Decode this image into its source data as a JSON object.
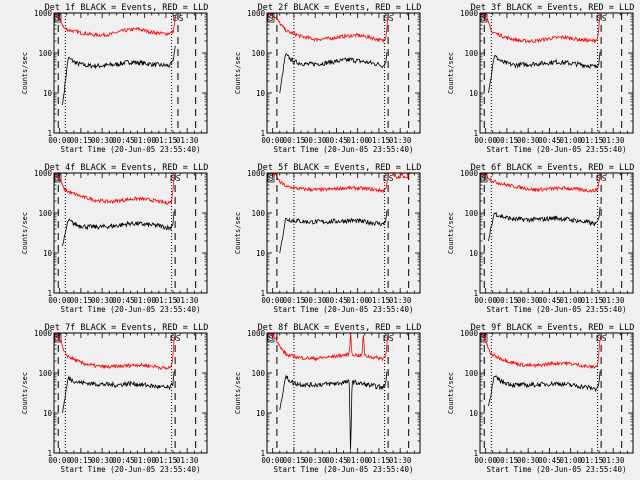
{
  "figure": {
    "xtick_labels": [
      "00:00",
      "00:15",
      "00:30",
      "00:45",
      "01:00",
      "01:15",
      "01:30"
    ],
    "ytick_labels": [
      "1",
      "10",
      "100",
      "1000"
    ],
    "ylabel": "Counts/sec",
    "xlabel": "Start Time (20-Jun-05 23:55:40)",
    "marker_labels": [
      "S",
      "E",
      "S"
    ],
    "colors": {
      "events": "#000000",
      "lld": "#ff0000",
      "background": "#f0f0f0"
    }
  },
  "chart_data": [
    {
      "type": "line",
      "title": "Det 1f BLACK = Events, RED = LLD",
      "xlabel": "Start Time (20-Jun-05 23:55:40)",
      "ylabel": "Counts/sec",
      "x_unit": "minutes since start",
      "xlim": [
        -4,
        104
      ],
      "ylim": [
        1,
        1000
      ],
      "yscale": "log",
      "dashed_lines_x": [
        -1,
        83.5,
        96
      ],
      "dotted_lines_x": [
        4,
        79
      ],
      "series": [
        {
          "name": "Events",
          "color": "black",
          "x": [
            2,
            6,
            12,
            20,
            30,
            40,
            50,
            60,
            70,
            78,
            80,
            81,
            82
          ],
          "y": [
            5,
            75,
            55,
            48,
            48,
            52,
            60,
            55,
            50,
            48,
            60,
            110,
            180
          ]
        },
        {
          "name": "LLD",
          "color": "red",
          "x": [
            -3,
            1,
            3,
            6,
            15,
            25,
            35,
            45,
            55,
            65,
            75,
            80,
            81,
            82,
            83
          ],
          "y": [
            1000,
            600,
            420,
            380,
            320,
            280,
            290,
            360,
            400,
            330,
            300,
            330,
            500,
            900,
            1000
          ]
        }
      ]
    },
    {
      "type": "line",
      "title": "Det 2f BLACK = Events, RED = LLD",
      "xlabel": "Start Time (20-Jun-05 23:55:40)",
      "ylabel": "Counts/sec",
      "x_unit": "minutes since start",
      "xlim": [
        -4,
        104
      ],
      "ylim": [
        1,
        1000
      ],
      "yscale": "log",
      "dashed_lines_x": [
        3,
        81.5,
        96
      ],
      "dotted_lines_x": [
        15,
        79
      ],
      "series": [
        {
          "name": "Events",
          "color": "black",
          "x": [
            5,
            9,
            15,
            25,
            35,
            45,
            55,
            65,
            75,
            78,
            80,
            81
          ],
          "y": [
            10,
            90,
            60,
            52,
            55,
            62,
            68,
            60,
            52,
            48,
            60,
            150
          ]
        },
        {
          "name": "LLD",
          "color": "red",
          "x": [
            -3,
            2,
            5,
            10,
            20,
            30,
            40,
            50,
            60,
            70,
            78,
            80,
            81,
            82
          ],
          "y": [
            1000,
            800,
            550,
            350,
            260,
            220,
            230,
            260,
            280,
            240,
            200,
            260,
            700,
            1000
          ]
        }
      ]
    },
    {
      "type": "line",
      "title": "Det 3f BLACK = Events, RED = LLD",
      "xlabel": "Start Time (20-Jun-05 23:55:40)",
      "ylabel": "Counts/sec",
      "x_unit": "minutes since start",
      "xlim": [
        -4,
        104
      ],
      "ylim": [
        1,
        1000
      ],
      "yscale": "log",
      "dashed_lines_x": [
        -1,
        81.5,
        96
      ],
      "dotted_lines_x": [
        4,
        79
      ],
      "series": [
        {
          "name": "Events",
          "color": "black",
          "x": [
            2,
            6,
            12,
            20,
            30,
            40,
            50,
            60,
            70,
            78,
            80,
            81
          ],
          "y": [
            10,
            85,
            58,
            50,
            52,
            55,
            60,
            55,
            50,
            45,
            60,
            130
          ]
        },
        {
          "name": "LLD",
          "color": "red",
          "x": [
            -3,
            1,
            4,
            8,
            15,
            25,
            35,
            45,
            55,
            65,
            75,
            79,
            80,
            81,
            82
          ],
          "y": [
            1000,
            700,
            350,
            300,
            240,
            200,
            200,
            230,
            250,
            220,
            200,
            220,
            500,
            900,
            1000
          ]
        }
      ]
    },
    {
      "type": "line",
      "title": "Det 4f BLACK = Events, RED = LLD",
      "xlabel": "Start Time (20-Jun-05 23:55:40)",
      "ylabel": "Counts/sec",
      "x_unit": "minutes since start",
      "xlim": [
        -4,
        104
      ],
      "ylim": [
        1,
        1000
      ],
      "yscale": "log",
      "dashed_lines_x": [
        -1,
        81.5,
        96
      ],
      "dotted_lines_x": [
        4,
        79
      ],
      "series": [
        {
          "name": "Events",
          "color": "black",
          "x": [
            2,
            6,
            12,
            20,
            30,
            40,
            50,
            60,
            70,
            78,
            80,
            81
          ],
          "y": [
            15,
            65,
            50,
            45,
            45,
            48,
            55,
            52,
            48,
            42,
            55,
            140
          ]
        },
        {
          "name": "LLD",
          "color": "red",
          "x": [
            -3,
            1,
            3,
            6,
            15,
            25,
            35,
            45,
            55,
            65,
            75,
            79,
            80,
            81,
            82
          ],
          "y": [
            1000,
            600,
            400,
            340,
            260,
            210,
            190,
            210,
            230,
            210,
            180,
            190,
            400,
            900,
            1000
          ]
        }
      ]
    },
    {
      "type": "line",
      "title": "Det 5f BLACK = Events, RED = LLD",
      "xlabel": "Start Time (20-Jun-05 23:55:40)",
      "ylabel": "Counts/sec",
      "x_unit": "minutes since start",
      "xlim": [
        -4,
        104
      ],
      "ylim": [
        1,
        1000
      ],
      "yscale": "log",
      "dashed_lines_x": [
        3,
        81.5,
        96
      ],
      "dotted_lines_x": [
        15,
        79
      ],
      "series": [
        {
          "name": "Events",
          "color": "black",
          "x": [
            5,
            9,
            15,
            25,
            35,
            45,
            55,
            65,
            75,
            78,
            80,
            81
          ],
          "y": [
            10,
            70,
            65,
            60,
            60,
            62,
            65,
            60,
            55,
            52,
            70,
            160
          ]
        },
        {
          "name": "LLD",
          "color": "red",
          "x": [
            -3,
            2,
            5,
            10,
            20,
            30,
            40,
            50,
            60,
            70,
            78,
            80,
            81,
            82,
            85,
            88,
            91,
            94,
            97
          ],
          "y": [
            1000,
            900,
            600,
            450,
            400,
            380,
            390,
            420,
            420,
            390,
            360,
            400,
            700,
            1000,
            1000,
            700,
            1000,
            700,
            1000
          ]
        }
      ]
    },
    {
      "type": "line",
      "title": "Det 6f BLACK = Events, RED = LLD",
      "xlabel": "Start Time (20-Jun-05 23:55:40)",
      "ylabel": "Counts/sec",
      "x_unit": "minutes since start",
      "xlim": [
        -4,
        104
      ],
      "ylim": [
        1,
        1000
      ],
      "yscale": "log",
      "dashed_lines_x": [
        -1,
        81.5,
        96
      ],
      "dotted_lines_x": [
        4,
        79
      ],
      "series": [
        {
          "name": "Events",
          "color": "black",
          "x": [
            2,
            6,
            12,
            20,
            30,
            40,
            50,
            60,
            70,
            78,
            80,
            81
          ],
          "y": [
            20,
            100,
            80,
            70,
            68,
            70,
            75,
            68,
            60,
            52,
            70,
            180
          ]
        },
        {
          "name": "LLD",
          "color": "red",
          "x": [
            -3,
            1,
            4,
            8,
            15,
            25,
            35,
            45,
            55,
            65,
            75,
            79,
            80,
            81,
            82
          ],
          "y": [
            1000,
            850,
            650,
            580,
            500,
            430,
            380,
            400,
            420,
            390,
            360,
            380,
            600,
            950,
            1000
          ]
        }
      ]
    },
    {
      "type": "line",
      "title": "Det 7f BLACK = Events, RED = LLD",
      "xlabel": "Start Time (20-Jun-05 23:55:40)",
      "ylabel": "Counts/sec",
      "x_unit": "minutes since start",
      "xlim": [
        -4,
        104
      ],
      "ylim": [
        1,
        1000
      ],
      "yscale": "log",
      "dashed_lines_x": [
        -1,
        81.5,
        96
      ],
      "dotted_lines_x": [
        4,
        79
      ],
      "series": [
        {
          "name": "Events",
          "color": "black",
          "x": [
            2,
            6,
            12,
            20,
            30,
            40,
            50,
            60,
            70,
            78,
            80,
            81
          ],
          "y": [
            10,
            75,
            60,
            55,
            52,
            50,
            55,
            50,
            45,
            42,
            55,
            140
          ]
        },
        {
          "name": "LLD",
          "color": "red",
          "x": [
            -3,
            1,
            3,
            6,
            15,
            25,
            35,
            45,
            55,
            65,
            75,
            79,
            80,
            81,
            82
          ],
          "y": [
            1000,
            600,
            330,
            260,
            180,
            150,
            140,
            150,
            160,
            150,
            130,
            140,
            300,
            800,
            1000
          ]
        }
      ]
    },
    {
      "type": "line",
      "title": "Det 8f BLACK = Events, RED = LLD",
      "xlabel": "Start Time (20-Jun-05 23:55:40)",
      "ylabel": "Counts/sec",
      "x_unit": "minutes since start",
      "xlim": [
        -4,
        104
      ],
      "ylim": [
        1,
        1000
      ],
      "yscale": "log",
      "dashed_lines_x": [
        3,
        81.5,
        96
      ],
      "dotted_lines_x": [
        15,
        79
      ],
      "series": [
        {
          "name": "Events",
          "color": "black",
          "x": [
            5,
            9,
            15,
            25,
            35,
            45,
            54,
            55,
            56,
            65,
            75,
            78,
            80,
            81
          ],
          "y": [
            12,
            80,
            55,
            50,
            52,
            55,
            60,
            1,
            60,
            52,
            45,
            42,
            60,
            160
          ]
        },
        {
          "name": "LLD",
          "color": "red",
          "x": [
            -3,
            2,
            5,
            10,
            20,
            30,
            40,
            50,
            54,
            55,
            56,
            63,
            64,
            65,
            70,
            78,
            80,
            81,
            82
          ],
          "y": [
            1000,
            800,
            450,
            280,
            240,
            230,
            250,
            280,
            290,
            1000,
            290,
            270,
            1000,
            270,
            250,
            230,
            280,
            800,
            1000
          ]
        }
      ]
    },
    {
      "type": "line",
      "title": "Det 9f BLACK = Events, RED = LLD",
      "xlabel": "Start Time (20-Jun-05 23:55:40)",
      "ylabel": "Counts/sec",
      "x_unit": "minutes since start",
      "xlim": [
        -4,
        104
      ],
      "ylim": [
        1,
        1000
      ],
      "yscale": "log",
      "dashed_lines_x": [
        -1,
        81.5,
        96
      ],
      "dotted_lines_x": [
        4,
        79
      ],
      "series": [
        {
          "name": "Events",
          "color": "black",
          "x": [
            2,
            6,
            12,
            20,
            30,
            40,
            50,
            60,
            70,
            78,
            80,
            81
          ],
          "y": [
            15,
            80,
            60,
            50,
            50,
            52,
            55,
            50,
            45,
            40,
            55,
            140
          ]
        },
        {
          "name": "LLD",
          "color": "red",
          "x": [
            -3,
            1,
            3,
            6,
            15,
            25,
            35,
            45,
            55,
            65,
            75,
            79,
            80,
            81,
            82
          ],
          "y": [
            1000,
            500,
            320,
            270,
            200,
            160,
            150,
            170,
            180,
            160,
            140,
            150,
            350,
            850,
            1000
          ]
        }
      ]
    }
  ]
}
